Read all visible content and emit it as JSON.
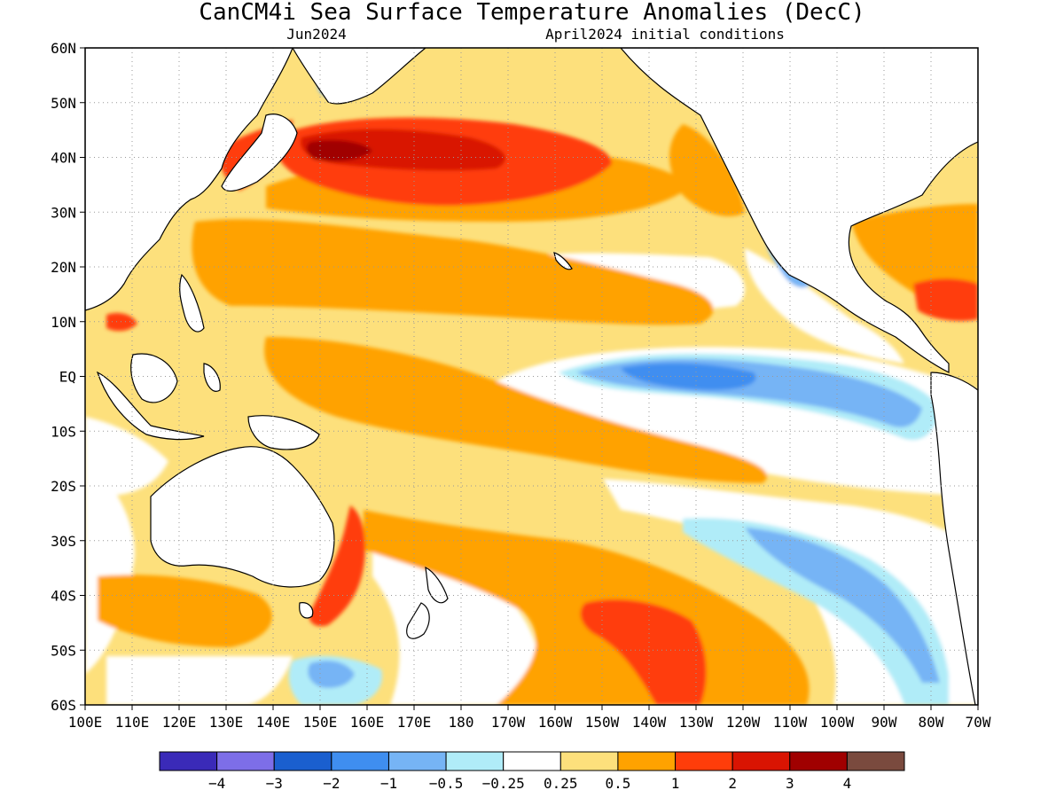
{
  "map": {
    "title": "CanCM4i Sea Surface Temperature Anomalies (DecC)",
    "valid_month": "Jun2024",
    "init_conditions": "April2024 initial conditions",
    "lat_ticks": [
      "60N",
      "50N",
      "40N",
      "30N",
      "20N",
      "10N",
      "EQ",
      "10S",
      "20S",
      "30S",
      "40S",
      "50S",
      "60S"
    ],
    "lat_values": [
      60,
      50,
      40,
      30,
      20,
      10,
      0,
      -10,
      -20,
      -30,
      -40,
      -50,
      -60
    ],
    "lon_ticks": [
      "100E",
      "110E",
      "120E",
      "130E",
      "140E",
      "150E",
      "160E",
      "170E",
      "180",
      "170W",
      "160W",
      "150W",
      "140W",
      "130W",
      "120W",
      "110W",
      "100W",
      "90W",
      "80W",
      "70W"
    ],
    "lon_values": [
      100,
      110,
      120,
      130,
      140,
      150,
      160,
      170,
      180,
      190,
      200,
      210,
      220,
      230,
      240,
      250,
      260,
      270,
      280,
      290
    ],
    "extent": {
      "lon_min": 100,
      "lon_max": 290,
      "lat_min": -60,
      "lat_max": 60
    },
    "grid": true,
    "colorbar": {
      "colors": [
        "#3a2ab8",
        "#7d6ee8",
        "#1a5fcf",
        "#3f8ef0",
        "#76b4f5",
        "#b0ecf8",
        "#ffffff",
        "#fde07c",
        "#ffa200",
        "#ff3d0a",
        "#d91402",
        "#a00000",
        "#7a4a3e"
      ],
      "labels": [
        "−4",
        "−3",
        "−2",
        "−1",
        "−0.5",
        "−0.25",
        "0.25",
        "0.5",
        "1",
        "2",
        "3",
        "4"
      ]
    },
    "colors": {
      "land": "#ffffff",
      "coast": "#000000",
      "gridline": "#999999"
    }
  }
}
